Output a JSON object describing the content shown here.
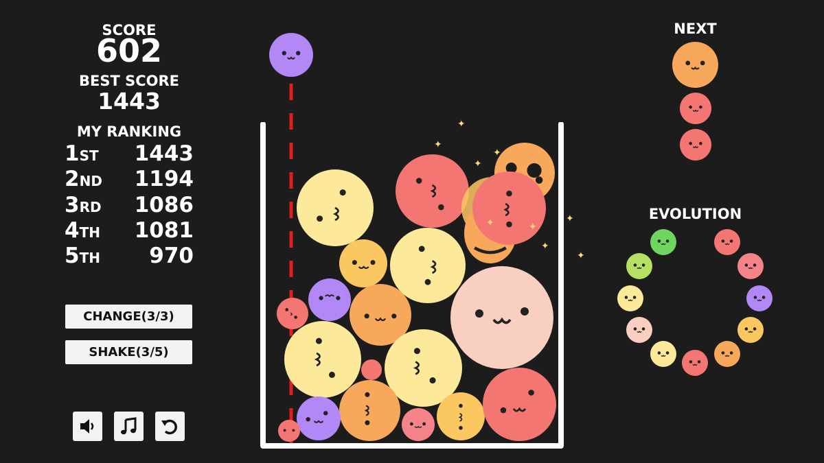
{
  "score": {
    "label": "SCORE",
    "value": "602"
  },
  "best": {
    "label": "BEST SCORE",
    "value": "1443"
  },
  "ranking": {
    "title": "MY RANKING",
    "rows": [
      {
        "num": "1",
        "suffix": "ST",
        "score": "1443"
      },
      {
        "num": "2",
        "suffix": "ND",
        "score": "1194"
      },
      {
        "num": "3",
        "suffix": "RD",
        "score": "1086"
      },
      {
        "num": "4",
        "suffix": "TH",
        "score": "1081"
      },
      {
        "num": "5",
        "suffix": "TH",
        "score": "970"
      }
    ]
  },
  "buttons": {
    "change": "CHANGE(3/3)",
    "shake": "SHAKE(3/5)"
  },
  "icons": {
    "sound": "speaker-icon",
    "music": "music-note-icon",
    "restart": "restart-icon"
  },
  "next": {
    "label": "NEXT"
  },
  "evolution": {
    "label": "EVOLUTION"
  },
  "colors": {
    "background": "#1c1c1c",
    "container": "#ffffff",
    "drop_line": "#e11d1d",
    "red": "#f47673",
    "orange": "#f7a85b",
    "yellow_orange": "#fbc760",
    "yellow": "#fde99a",
    "peach": "#f8cfc0",
    "purple": "#b288f7",
    "green": "#6ed65f",
    "lime": "#b5e061",
    "pink": "#f5838a"
  }
}
